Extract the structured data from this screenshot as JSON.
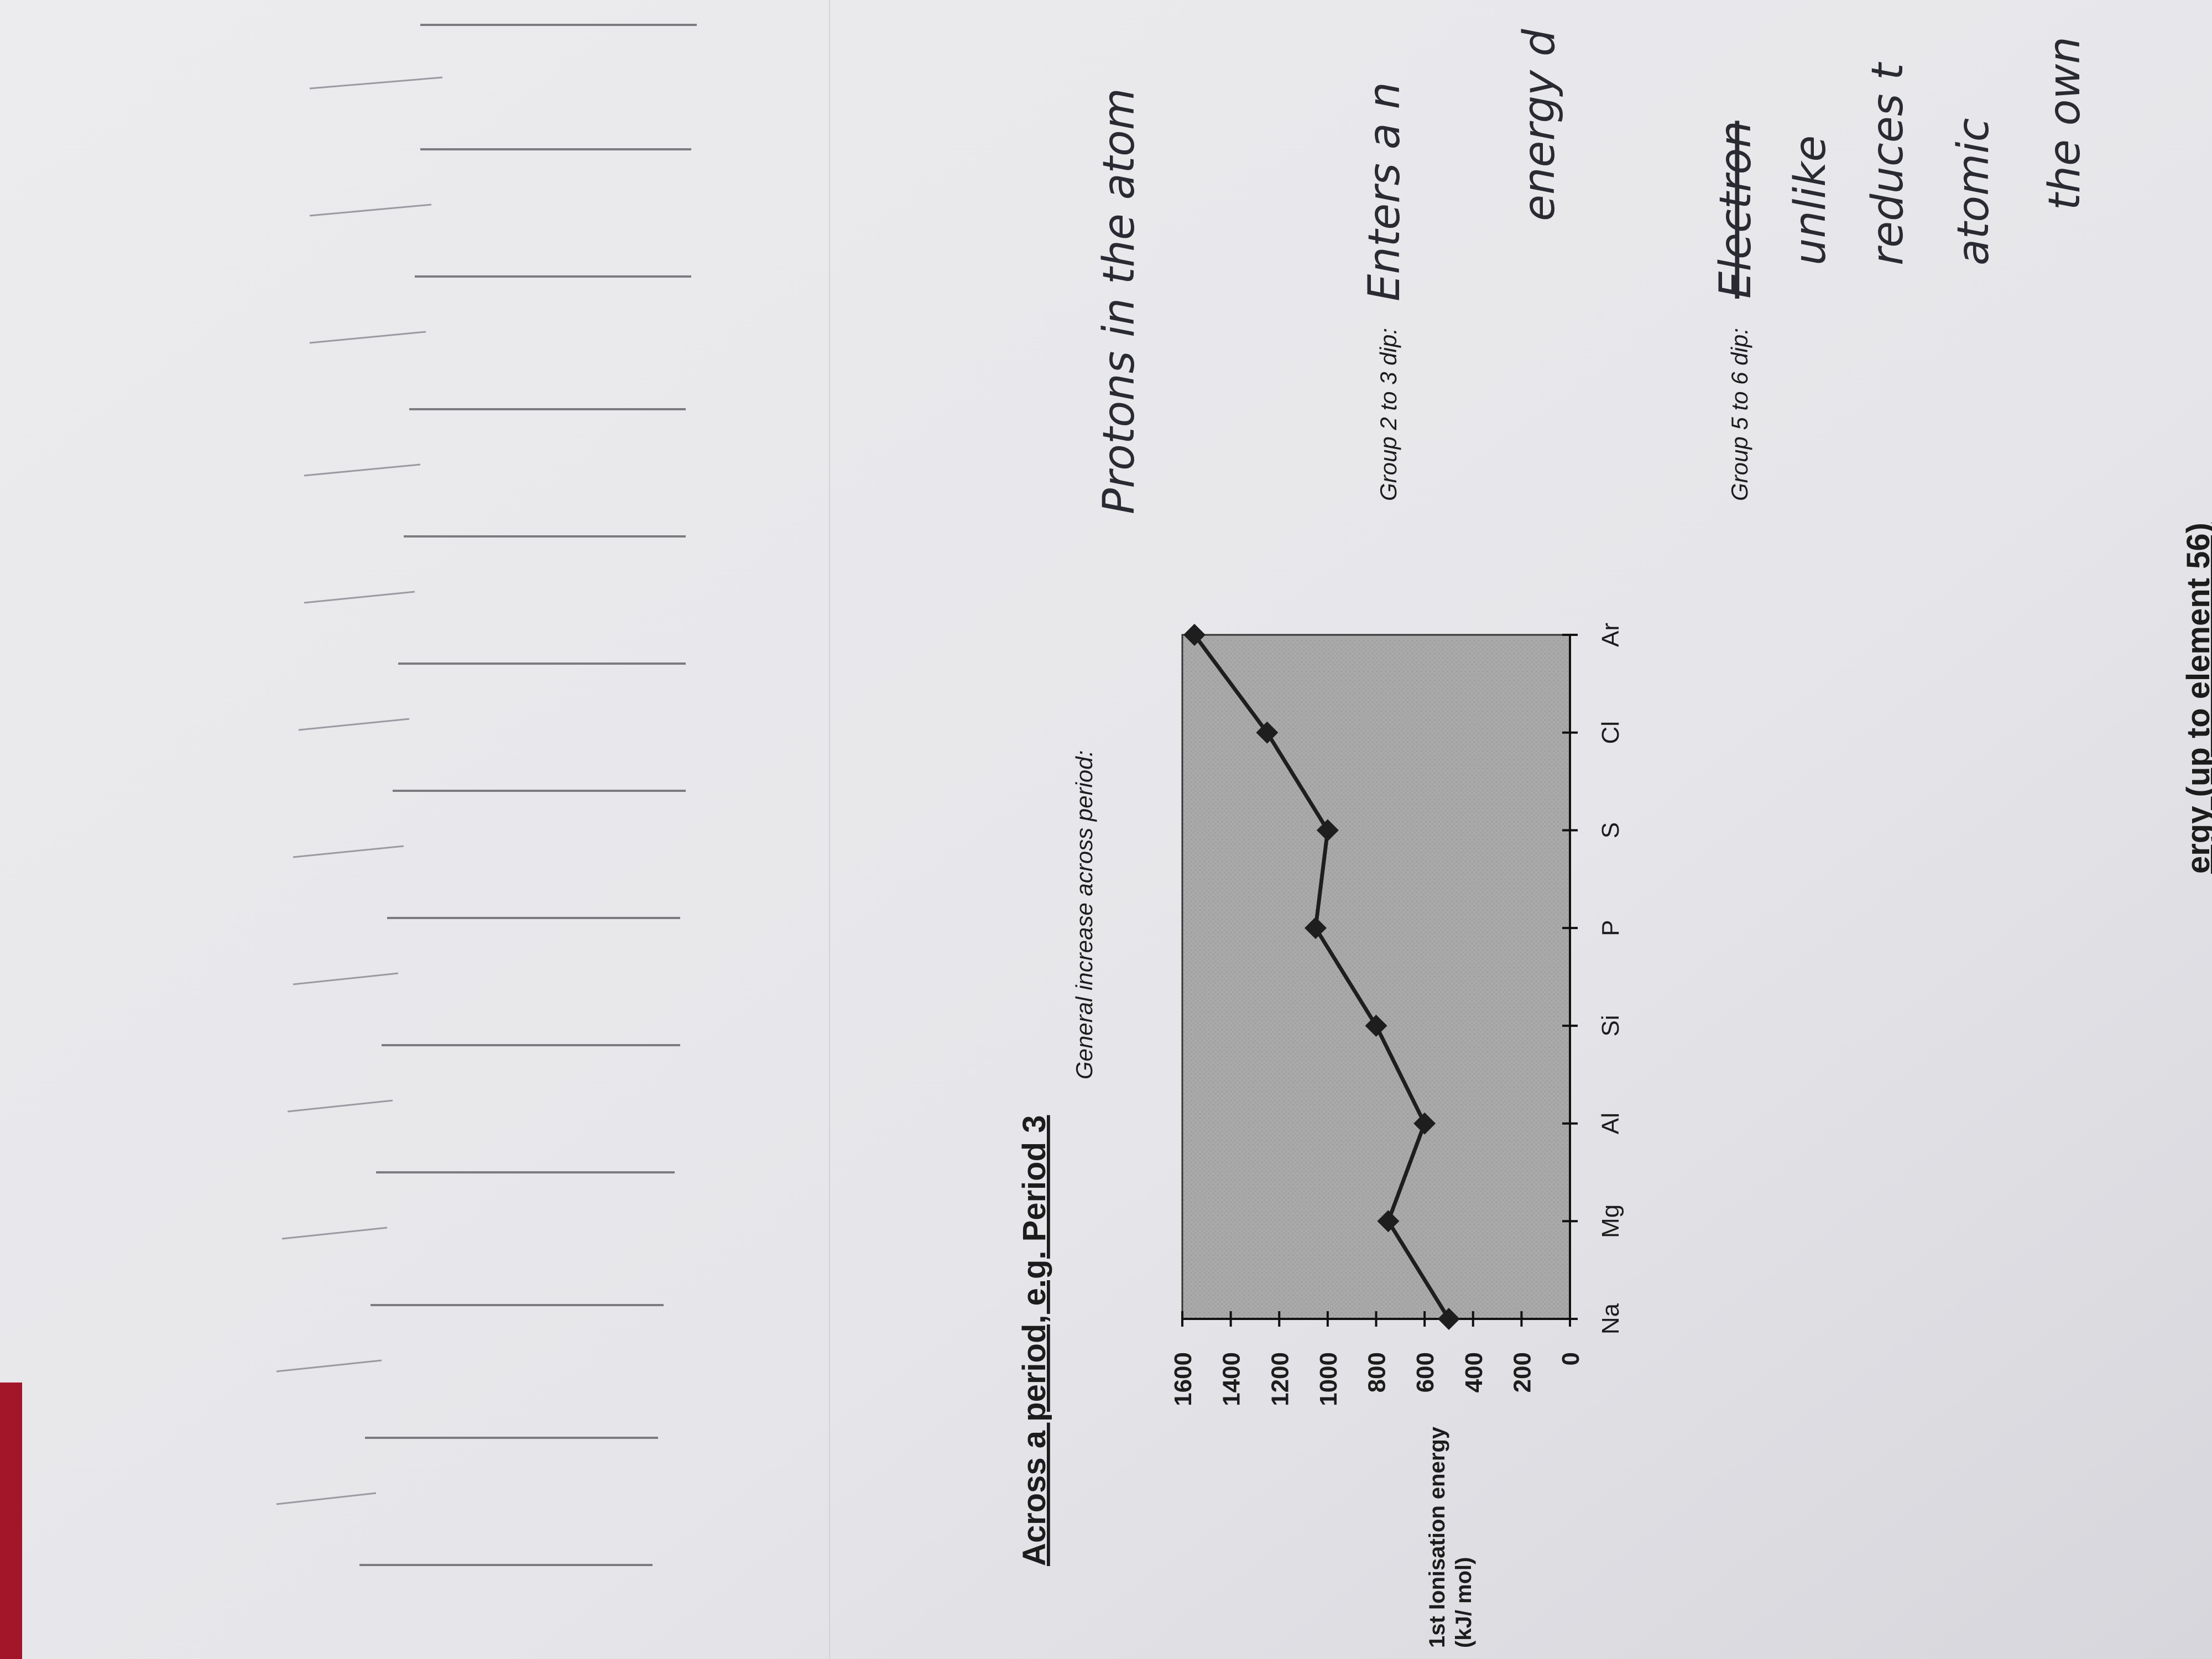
{
  "heading": "Across a period, e.g. Period 3",
  "chart_data": {
    "type": "line",
    "y_label": "1st Ionisation energy (kJ/ mol)",
    "categories": [
      "Na",
      "Mg",
      "Al",
      "Si",
      "P",
      "S",
      "Cl",
      "Ar"
    ],
    "values": [
      500,
      750,
      600,
      800,
      1050,
      1000,
      1250,
      1550
    ],
    "color": "#1e1e1e",
    "plot_color": "#a9a9a9",
    "ylim": [
      0,
      1600
    ],
    "yticks": [
      0,
      200,
      400,
      600,
      800,
      1000,
      1200,
      1400,
      1600
    ],
    "grid": false
  },
  "notes": [
    {
      "label": "General increase across period:",
      "handwriting": [
        "Protons in the atom"
      ]
    },
    {
      "label": "Group 2 to 3 dip:",
      "handwriting": [
        "Enters a n",
        "energy d"
      ]
    },
    {
      "label": "Group 5 to 6 dip:",
      "handwriting": [
        "Electron",
        "unlike",
        "reduces t",
        "atomic",
        "the own"
      ]
    }
  ],
  "footer": "ergy (up to element 56)"
}
